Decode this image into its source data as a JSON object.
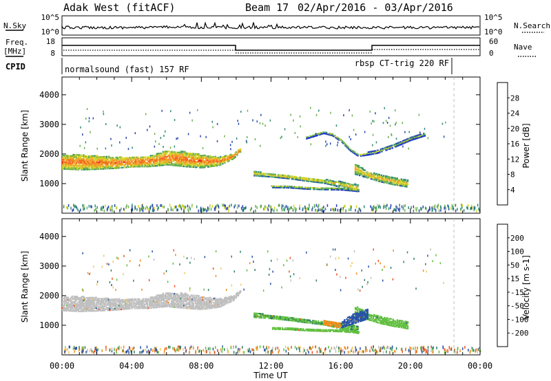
{
  "header": {
    "station": "Adak West (fitACF)",
    "beam": "Beam 17",
    "date_range": "02/Apr/2016 - 03/Apr/2016"
  },
  "top_panels": {
    "nsky": {
      "label": "N.Sky",
      "ticks": [
        "10^5",
        "10^0"
      ],
      "right_label": "N.Search",
      "right_ticks": [
        "10^5",
        "10^0"
      ]
    },
    "freq": {
      "label_line1": "Freq.",
      "label_line2": "[MHz]",
      "ticks": [
        "18",
        "8"
      ],
      "right_label": "Nave",
      "right_ticks": [
        "60",
        "0"
      ]
    },
    "cpid": {
      "label": "CPID",
      "modes": [
        {
          "text": "normalsound (fast) 157 RF",
          "start_hour": 0,
          "end_hour": 22.5
        },
        {
          "text": "rbsp CT-trig 220 RF",
          "start_hour": 22.5,
          "end_hour": 24
        }
      ]
    }
  },
  "chart_data": [
    {
      "type": "heatmap",
      "title": "",
      "quantity": "Power",
      "ylabel": "Slant Range [km]",
      "xlabel": "",
      "xlim": [
        0,
        24
      ],
      "ylim": [
        0,
        4600
      ],
      "x_ticks": [
        "00:00",
        "04:00",
        "08:00",
        "12:00",
        "16:00",
        "20:00",
        "00:00"
      ],
      "y_ticks": [
        1000,
        2000,
        3000,
        4000
      ],
      "colorbar": {
        "label": "Power [dB]",
        "ticks": [
          4,
          8,
          12,
          16,
          20,
          24,
          28
        ],
        "colors": [
          "#0a1ef0",
          "#2846b4",
          "#2e8a78",
          "#6bb050",
          "#d2d22a",
          "#f2a02c",
          "#f26a1e",
          "#e81a1a"
        ]
      },
      "bands": [
        {
          "name": "",
          "x": [
            0,
            1,
            2,
            3,
            4,
            5,
            6,
            7,
            8,
            9,
            9.8,
            10.2
          ],
          "range_low": [
            1480,
            1450,
            1470,
            1500,
            1550,
            1560,
            1620,
            1560,
            1520,
            1600,
            1820,
            2050
          ],
          "range_high": [
            1960,
            1960,
            1920,
            1880,
            1880,
            1920,
            2100,
            2060,
            1960,
            1880,
            1980,
            2180
          ],
          "level": 14
        },
        {
          "name": "",
          "x": [
            11,
            12,
            13,
            14,
            15,
            16,
            17
          ],
          "range_low": [
            1250,
            1210,
            1150,
            1070,
            1000,
            860,
            700
          ],
          "range_high": [
            1400,
            1330,
            1270,
            1200,
            1130,
            1050,
            950
          ],
          "level": 9
        },
        {
          "name": "",
          "x": [
            16.8,
            17.5,
            18.2,
            19,
            19.8
          ],
          "range_low": [
            1300,
            1180,
            1050,
            950,
            870
          ],
          "range_high": [
            1650,
            1400,
            1280,
            1180,
            1100
          ],
          "level": 10
        },
        {
          "name": "",
          "x": [
            12,
            13,
            14,
            15,
            16,
            17
          ],
          "range_low": [
            850,
            840,
            800,
            780,
            770,
            720
          ],
          "range_high": [
            920,
            900,
            870,
            850,
            830,
            790
          ],
          "level": 7
        },
        {
          "name": "",
          "x": [
            14,
            15,
            15.5,
            16,
            16.5,
            17,
            18,
            19,
            20,
            20.8
          ],
          "range_low": [
            2500,
            2680,
            2600,
            2400,
            2100,
            1900,
            2000,
            2200,
            2450,
            2600
          ],
          "range_high": [
            2580,
            2750,
            2680,
            2480,
            2180,
            1980,
            2100,
            2300,
            2550,
            2700
          ],
          "level": 5
        }
      ]
    },
    {
      "type": "heatmap",
      "title": "",
      "quantity": "Velocity",
      "ylabel": "Slant Range [km]",
      "xlabel": "Time UT",
      "xlim": [
        0,
        24
      ],
      "ylim": [
        0,
        4600
      ],
      "x_ticks": [
        "00:00",
        "04:00",
        "08:00",
        "12:00",
        "16:00",
        "20:00",
        "00:00"
      ],
      "y_ticks": [
        1000,
        2000,
        3000,
        4000
      ],
      "colorbar": {
        "label": "Velocity [m s-1]",
        "ticks": [
          200,
          100,
          50,
          15,
          -15,
          -50,
          -100,
          -200
        ],
        "colors": [
          "#1432c8",
          "#2854a8",
          "#2e8060",
          "#62c040",
          "#c0c0c0",
          "#f0c864",
          "#f08c1e",
          "#f05014",
          "#e61414"
        ]
      },
      "bands": [
        {
          "name": "",
          "x": [
            0,
            1,
            2,
            3,
            4,
            5,
            6,
            7,
            8,
            9,
            9.8,
            10.2
          ],
          "range_low": [
            1480,
            1450,
            1470,
            1500,
            1550,
            1560,
            1620,
            1560,
            1520,
            1600,
            1820,
            2050
          ],
          "range_high": [
            1960,
            1960,
            1920,
            1880,
            1880,
            1920,
            2100,
            2060,
            1960,
            1880,
            1980,
            2180
          ],
          "level": 0
        },
        {
          "name": "",
          "x": [
            11,
            12,
            13,
            14,
            15,
            16,
            17
          ],
          "range_low": [
            1250,
            1210,
            1150,
            1070,
            1000,
            860,
            700
          ],
          "range_high": [
            1400,
            1330,
            1270,
            1200,
            1130,
            1050,
            950
          ],
          "level": 40
        },
        {
          "name": "",
          "x": [
            16.8,
            17.5,
            18.2,
            19,
            19.8
          ],
          "range_low": [
            1300,
            1180,
            1050,
            950,
            870
          ],
          "range_high": [
            1650,
            1400,
            1280,
            1180,
            1100
          ],
          "level": 30
        },
        {
          "name": "",
          "x": [
            16,
            16.5,
            17,
            17.5
          ],
          "range_low": [
            900,
            1000,
            1100,
            1200
          ],
          "range_high": [
            1100,
            1300,
            1450,
            1550
          ],
          "level": 180
        },
        {
          "name": "",
          "x": [
            15,
            15.5,
            16
          ],
          "range_low": [
            1000,
            950,
            900
          ],
          "range_high": [
            1140,
            1100,
            1060
          ],
          "level": -70
        },
        {
          "name": "",
          "x": [
            12,
            13,
            14,
            15,
            16,
            17
          ],
          "range_low": [
            850,
            840,
            800,
            780,
            770,
            720
          ],
          "range_high": [
            920,
            900,
            870,
            850,
            830,
            790
          ],
          "level": 30
        }
      ]
    }
  ]
}
